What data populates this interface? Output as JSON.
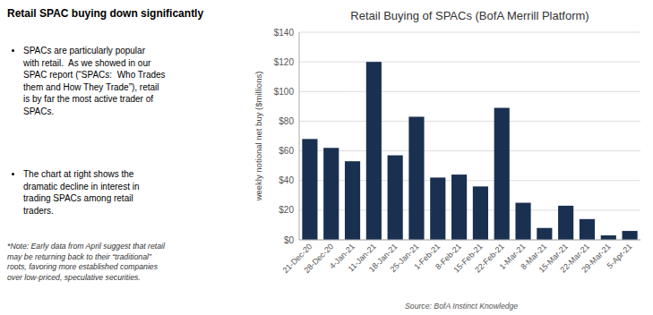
{
  "chart_data": {
    "type": "bar",
    "title": "Retail Buying of SPACs (BofA Merrill Platform)",
    "ylabel": "weekly notional net buy ($millions)",
    "categories": [
      "21-Dec-20",
      "28-Dec-20",
      "4-Jan-21",
      "11-Jan-21",
      "18-Jan-21",
      "25-Jan-21",
      "1-Feb-21",
      "8-Feb-21",
      "15-Feb-21",
      "22-Feb-21",
      "1-Mar-21",
      "8-Mar-21",
      "15-Mar-21",
      "22-Mar-21",
      "29-Mar-21",
      "5-Apr-21"
    ],
    "values": [
      68,
      62,
      53,
      120,
      57,
      83,
      42,
      44,
      36,
      89,
      25,
      8,
      23,
      14,
      3,
      6
    ],
    "color": "#1a3050",
    "ylim": [
      0,
      140
    ],
    "yticks": [
      {
        "value": 0,
        "label": "$0"
      },
      {
        "value": 20,
        "label": "$20"
      },
      {
        "value": 40,
        "label": "$40"
      },
      {
        "value": 60,
        "label": "$60"
      },
      {
        "value": 80,
        "label": "$80"
      },
      {
        "value": 100,
        "label": "$100"
      },
      {
        "value": 120,
        "label": "$120"
      },
      {
        "value": 140,
        "label": "$140"
      }
    ],
    "grid": true,
    "annotations": [
      "Retail SPAC buying down significantly",
      "SPACs are particularly popular\nwith retail.  As we showed in our\nSPAC report (“SPACs:  Who Trades\nthem and How They Trade”), retail\nis by far the most active trader of\nSPACs.",
      "The chart at right shows the\ndramatic decline in interest in\ntrading SPACs among retail\ntraders.",
      "*Note: Early data from April suggest that retail\nmay be returning back to their “traditional”\nroots, favoring more established companies\nover low-priced, speculative securities.",
      "Source: BofA Instinct Knowledge"
    ]
  }
}
